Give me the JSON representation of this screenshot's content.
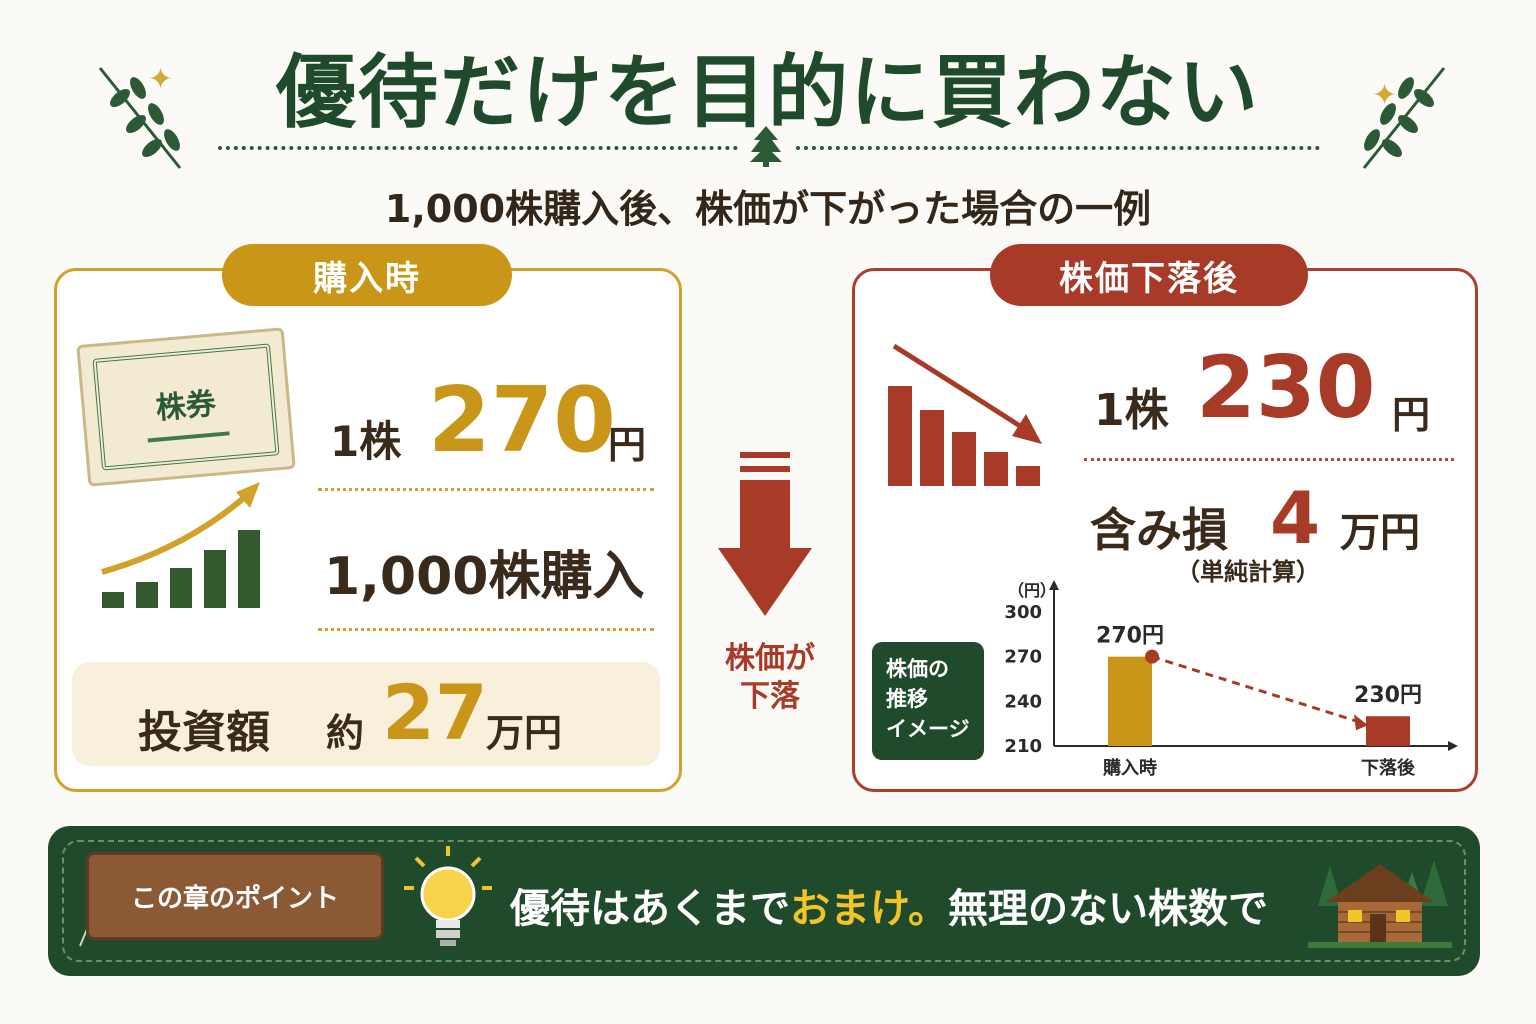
{
  "header": {
    "title": "優待だけを目的に買わない",
    "subtitle": "1,000株購入後、株価が下がった場合の一例"
  },
  "left_panel": {
    "badge": "購入時",
    "ticket_label": "株券",
    "price_prefix": "1株",
    "price_value": "270",
    "price_unit": "円",
    "shares_text": "1,000株購入",
    "invest_label": "投資額",
    "invest_prefix": "約",
    "invest_value": "27",
    "invest_unit": "万円"
  },
  "middle": {
    "arrow_line1": "株価が",
    "arrow_line2": "下落"
  },
  "right_panel": {
    "badge": "株価下落後",
    "price_prefix": "1株",
    "price_value": "230",
    "price_unit": "円",
    "loss_label": "含み損",
    "loss_value": "4",
    "loss_unit": "万円",
    "loss_note": "（単純計算）",
    "chart_box_line1": "株価の",
    "chart_box_line2": "推移",
    "chart_box_line3": "イメージ"
  },
  "chart_data": {
    "type": "bar",
    "categories": [
      "購入時",
      "下落後"
    ],
    "values": [
      270,
      230
    ],
    "value_labels": [
      "270円",
      "230円"
    ],
    "ylabel": "（円）",
    "yticks": [
      "300",
      "270",
      "240",
      "210"
    ],
    "ylim": [
      210,
      300
    ],
    "colors": [
      "#c9961a",
      "#a83a28"
    ]
  },
  "footer": {
    "sign_label": "この章のポイント",
    "point_before": "優待はあくまで",
    "point_highlight": "おまけ。",
    "point_after": "無理のない株数で"
  },
  "colors": {
    "green": "#1f4a2c",
    "gold": "#c9961a",
    "red": "#a83a28"
  }
}
